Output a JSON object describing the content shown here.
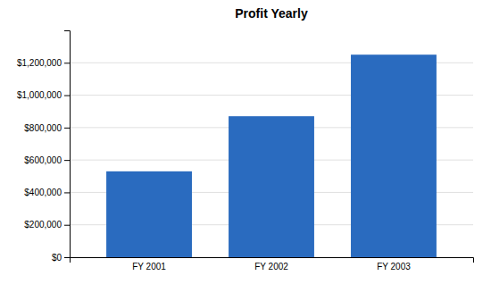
{
  "chart_data": {
    "type": "bar",
    "title": "Profit Yearly",
    "categories": [
      "FY 2001",
      "FY 2002",
      "FY 2003"
    ],
    "values": [
      530000,
      870000,
      1250000
    ],
    "color": "#2A6BBF",
    "ylim": [
      0,
      1400000
    ],
    "yticks": [
      {
        "value": 0,
        "label": "$0"
      },
      {
        "value": 200000,
        "label": "$200,000"
      },
      {
        "value": 400000,
        "label": "$400,000"
      },
      {
        "value": 600000,
        "label": "$600,000"
      },
      {
        "value": 800000,
        "label": "$800,000"
      },
      {
        "value": 1000000,
        "label": "$1,000,000"
      },
      {
        "value": 1200000,
        "label": "$1,200,000"
      }
    ],
    "grid": true
  }
}
